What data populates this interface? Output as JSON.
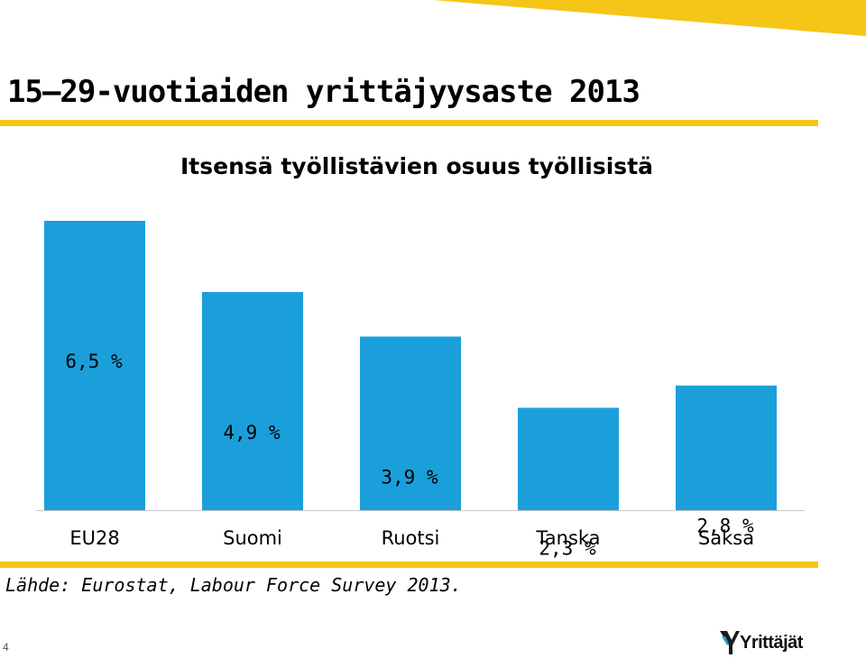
{
  "slide": {
    "title": "15–29-vuotiaiden yrittäjyysaste 2013",
    "source": "Lähde: Eurostat, Labour Force Survey 2013.",
    "page_number": "4",
    "logo_text": "Yrittäjät"
  },
  "colors": {
    "bar": "#1a9fdb",
    "accent": "#f5c518",
    "axis": "#c8c8c8"
  },
  "chart_data": {
    "type": "bar",
    "title": "Itsensä työllistävien osuus työllisistä",
    "categories": [
      "EU28",
      "Suomi",
      "Ruotsi",
      "Tanska",
      "Saksa"
    ],
    "values": [
      6.5,
      4.9,
      3.9,
      2.3,
      2.8
    ],
    "value_labels": [
      "6,5 %",
      "4,9 %",
      "3,9 %",
      "2,3 %",
      "2,8 %"
    ],
    "xlabel": "",
    "ylabel": "",
    "grid": false,
    "legend": "none"
  }
}
